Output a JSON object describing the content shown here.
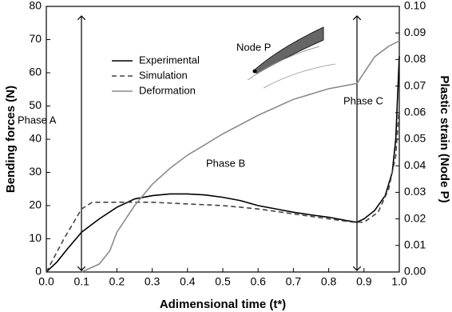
{
  "chart_data": {
    "type": "line",
    "xlabel": "Adimensional time (t*)",
    "ylabel": "Bending forces (N)",
    "y2label": "Plastic strain (Node P)",
    "xlim": [
      0,
      1
    ],
    "xticks": [
      {
        "value": 0,
        "label": "0.0"
      },
      0.1,
      0.2,
      0.3,
      0.4,
      0.5,
      0.6,
      0.7,
      0.8,
      0.9,
      {
        "value": 1,
        "label": "1.0"
      }
    ],
    "ylim": [
      0,
      80
    ],
    "yticks": [
      0,
      10,
      20,
      30,
      40,
      50,
      60,
      70,
      80
    ],
    "y2lim": [
      0,
      0.1
    ],
    "y2ticks": [
      {
        "value": 0,
        "label": "0.00"
      },
      {
        "value": 0.01,
        "label": "0.01"
      },
      {
        "value": 0.02,
        "label": "0.02"
      },
      {
        "value": 0.03,
        "label": "0.03"
      },
      {
        "value": 0.04,
        "label": "0.04"
      },
      {
        "value": 0.05,
        "label": "0.05"
      },
      {
        "value": 0.06,
        "label": "0.06"
      },
      {
        "value": 0.07,
        "label": "0.07"
      },
      {
        "value": 0.08,
        "label": "0.08"
      },
      {
        "value": 0.09,
        "label": "0.09"
      },
      {
        "value": 0.1,
        "label": "0.10"
      }
    ],
    "annotations": [
      "Phase A",
      "Phase B",
      "Phase C",
      "Node P"
    ],
    "series": [
      {
        "name": "Experimental",
        "color": "#000000",
        "dash": "none",
        "x": [
          0,
          0.03,
          0.06,
          0.1,
          0.15,
          0.2,
          0.25,
          0.3,
          0.35,
          0.4,
          0.45,
          0.5,
          0.55,
          0.6,
          0.65,
          0.7,
          0.75,
          0.8,
          0.85,
          0.88,
          0.9,
          0.93,
          0.96,
          0.98,
          0.99,
          1.0
        ],
        "values": [
          0,
          3,
          7,
          12,
          16,
          19.5,
          22,
          23,
          23.5,
          23.5,
          23.2,
          22.5,
          21.5,
          20,
          19,
          18,
          17.2,
          16.5,
          15.5,
          15,
          16,
          18.5,
          23,
          30,
          40,
          65
        ]
      },
      {
        "name": "Simulation",
        "color": "#444444",
        "dash": "6,4",
        "x": [
          0,
          0.05,
          0.1,
          0.13,
          0.2,
          0.3,
          0.4,
          0.5,
          0.6,
          0.7,
          0.8,
          0.87,
          0.9,
          0.94,
          0.97,
          0.99,
          1.0
        ],
        "values": [
          0,
          10,
          19,
          21,
          21,
          21,
          20.5,
          20,
          19,
          17.5,
          16,
          15,
          15,
          18,
          25,
          35,
          50
        ]
      },
      {
        "name": "Deformation",
        "color": "#8c8c8c",
        "dash": "none",
        "axis": "y2",
        "x": [
          0.1,
          0.15,
          0.18,
          0.2,
          0.25,
          0.3,
          0.35,
          0.4,
          0.5,
          0.6,
          0.7,
          0.8,
          0.88,
          0.9,
          0.93,
          0.97,
          1.0
        ],
        "values": [
          0,
          0.003,
          0.008,
          0.015,
          0.025,
          0.033,
          0.039,
          0.044,
          0.052,
          0.059,
          0.065,
          0.069,
          0.071,
          0.075,
          0.081,
          0.085,
          0.087
        ]
      }
    ]
  }
}
